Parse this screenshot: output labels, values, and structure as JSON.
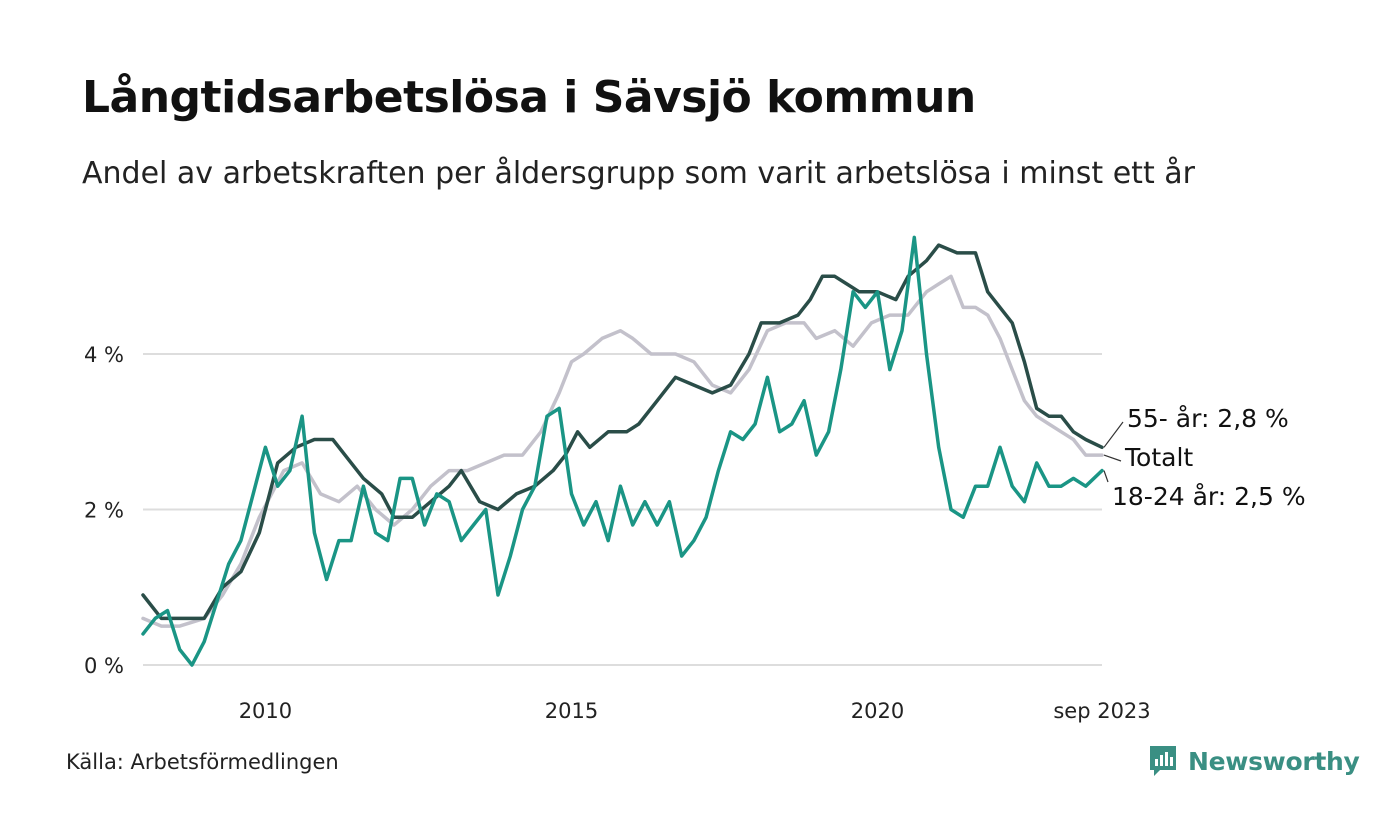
{
  "header": {
    "title": "Långtidsarbetslösa i Sävsjö kommun",
    "subtitle": "Andel av arbetskraften per åldersgrupp som varit arbetslösa i minst ett år"
  },
  "footer": {
    "source": "Källa: Arbetsförmedlingen",
    "brand": "Newsworthy"
  },
  "colors": {
    "age55": "#2a4d48",
    "total": "#c3c1cb",
    "age1824": "#1a9585",
    "grid": "#dddddd",
    "brand": "#3a8f83"
  },
  "chart_data": {
    "type": "line",
    "title": "Långtidsarbetslösa i Sävsjö kommun",
    "xlabel": "",
    "ylabel": "",
    "x_start": 2008.0,
    "x_end": 2023.667,
    "ylim": [
      0,
      5.6
    ],
    "yticks": [
      {
        "value": 0,
        "label": "0 %"
      },
      {
        "value": 2,
        "label": "2 %"
      },
      {
        "value": 4,
        "label": "4 %"
      }
    ],
    "xticks": [
      {
        "value": 2010,
        "label": "2010"
      },
      {
        "value": 2015,
        "label": "2015"
      },
      {
        "value": 2020,
        "label": "2020"
      },
      {
        "value": 2023.667,
        "label": "sep 2023"
      }
    ],
    "grid": true,
    "series": [
      {
        "name": "Totalt",
        "key": "total",
        "end_label": "Totalt",
        "points": [
          [
            2008.0,
            0.6
          ],
          [
            2008.3,
            0.5
          ],
          [
            2008.6,
            0.5
          ],
          [
            2009.0,
            0.6
          ],
          [
            2009.3,
            0.9
          ],
          [
            2009.6,
            1.3
          ],
          [
            2009.9,
            1.9
          ],
          [
            2010.3,
            2.5
          ],
          [
            2010.6,
            2.6
          ],
          [
            2010.9,
            2.2
          ],
          [
            2011.2,
            2.1
          ],
          [
            2011.5,
            2.3
          ],
          [
            2011.8,
            2.0
          ],
          [
            2012.1,
            1.8
          ],
          [
            2012.4,
            2.0
          ],
          [
            2012.7,
            2.3
          ],
          [
            2013.0,
            2.5
          ],
          [
            2013.3,
            2.5
          ],
          [
            2013.6,
            2.6
          ],
          [
            2013.9,
            2.7
          ],
          [
            2014.2,
            2.7
          ],
          [
            2014.5,
            3.0
          ],
          [
            2014.8,
            3.5
          ],
          [
            2015.0,
            3.9
          ],
          [
            2015.2,
            4.0
          ],
          [
            2015.5,
            4.2
          ],
          [
            2015.8,
            4.3
          ],
          [
            2016.0,
            4.2
          ],
          [
            2016.3,
            4.0
          ],
          [
            2016.7,
            4.0
          ],
          [
            2017.0,
            3.9
          ],
          [
            2017.3,
            3.6
          ],
          [
            2017.6,
            3.5
          ],
          [
            2017.9,
            3.8
          ],
          [
            2018.2,
            4.3
          ],
          [
            2018.5,
            4.4
          ],
          [
            2018.8,
            4.4
          ],
          [
            2019.0,
            4.2
          ],
          [
            2019.3,
            4.3
          ],
          [
            2019.6,
            4.1
          ],
          [
            2019.9,
            4.4
          ],
          [
            2020.2,
            4.5
          ],
          [
            2020.5,
            4.5
          ],
          [
            2020.8,
            4.8
          ],
          [
            2021.0,
            4.9
          ],
          [
            2021.2,
            5.0
          ],
          [
            2021.4,
            4.6
          ],
          [
            2021.6,
            4.6
          ],
          [
            2021.8,
            4.5
          ],
          [
            2022.0,
            4.2
          ],
          [
            2022.2,
            3.8
          ],
          [
            2022.4,
            3.4
          ],
          [
            2022.6,
            3.2
          ],
          [
            2022.8,
            3.1
          ],
          [
            2023.0,
            3.0
          ],
          [
            2023.2,
            2.9
          ],
          [
            2023.4,
            2.7
          ],
          [
            2023.667,
            2.7
          ]
        ]
      },
      {
        "name": "55- år",
        "key": "age55",
        "end_label": "55- år: 2,8 %",
        "points": [
          [
            2008.0,
            0.9
          ],
          [
            2008.3,
            0.6
          ],
          [
            2008.6,
            0.6
          ],
          [
            2009.0,
            0.6
          ],
          [
            2009.3,
            1.0
          ],
          [
            2009.6,
            1.2
          ],
          [
            2009.9,
            1.7
          ],
          [
            2010.2,
            2.6
          ],
          [
            2010.5,
            2.8
          ],
          [
            2010.8,
            2.9
          ],
          [
            2011.1,
            2.9
          ],
          [
            2011.3,
            2.7
          ],
          [
            2011.6,
            2.4
          ],
          [
            2011.9,
            2.2
          ],
          [
            2012.1,
            1.9
          ],
          [
            2012.4,
            1.9
          ],
          [
            2012.7,
            2.1
          ],
          [
            2013.0,
            2.3
          ],
          [
            2013.2,
            2.5
          ],
          [
            2013.5,
            2.1
          ],
          [
            2013.8,
            2.0
          ],
          [
            2014.1,
            2.2
          ],
          [
            2014.4,
            2.3
          ],
          [
            2014.7,
            2.5
          ],
          [
            2014.9,
            2.7
          ],
          [
            2015.1,
            3.0
          ],
          [
            2015.3,
            2.8
          ],
          [
            2015.6,
            3.0
          ],
          [
            2015.9,
            3.0
          ],
          [
            2016.1,
            3.1
          ],
          [
            2016.4,
            3.4
          ],
          [
            2016.7,
            3.7
          ],
          [
            2017.0,
            3.6
          ],
          [
            2017.3,
            3.5
          ],
          [
            2017.6,
            3.6
          ],
          [
            2017.9,
            4.0
          ],
          [
            2018.1,
            4.4
          ],
          [
            2018.4,
            4.4
          ],
          [
            2018.7,
            4.5
          ],
          [
            2018.9,
            4.7
          ],
          [
            2019.1,
            5.0
          ],
          [
            2019.3,
            5.0
          ],
          [
            2019.5,
            4.9
          ],
          [
            2019.7,
            4.8
          ],
          [
            2020.0,
            4.8
          ],
          [
            2020.3,
            4.7
          ],
          [
            2020.5,
            5.0
          ],
          [
            2020.8,
            5.2
          ],
          [
            2021.0,
            5.4
          ],
          [
            2021.3,
            5.3
          ],
          [
            2021.6,
            5.3
          ],
          [
            2021.8,
            4.8
          ],
          [
            2022.0,
            4.6
          ],
          [
            2022.2,
            4.4
          ],
          [
            2022.4,
            3.9
          ],
          [
            2022.6,
            3.3
          ],
          [
            2022.8,
            3.2
          ],
          [
            2023.0,
            3.2
          ],
          [
            2023.2,
            3.0
          ],
          [
            2023.4,
            2.9
          ],
          [
            2023.667,
            2.8
          ]
        ]
      },
      {
        "name": "18-24 år",
        "key": "age1824",
        "end_label": "18-24 år: 2,5 %",
        "points": [
          [
            2008.0,
            0.4
          ],
          [
            2008.2,
            0.6
          ],
          [
            2008.4,
            0.7
          ],
          [
            2008.6,
            0.2
          ],
          [
            2008.8,
            0.0
          ],
          [
            2009.0,
            0.3
          ],
          [
            2009.2,
            0.8
          ],
          [
            2009.4,
            1.3
          ],
          [
            2009.6,
            1.6
          ],
          [
            2009.8,
            2.2
          ],
          [
            2010.0,
            2.8
          ],
          [
            2010.2,
            2.3
          ],
          [
            2010.4,
            2.5
          ],
          [
            2010.6,
            3.2
          ],
          [
            2010.8,
            1.7
          ],
          [
            2011.0,
            1.1
          ],
          [
            2011.2,
            1.6
          ],
          [
            2011.4,
            1.6
          ],
          [
            2011.6,
            2.3
          ],
          [
            2011.8,
            1.7
          ],
          [
            2012.0,
            1.6
          ],
          [
            2012.2,
            2.4
          ],
          [
            2012.4,
            2.4
          ],
          [
            2012.6,
            1.8
          ],
          [
            2012.8,
            2.2
          ],
          [
            2013.0,
            2.1
          ],
          [
            2013.2,
            1.6
          ],
          [
            2013.4,
            1.8
          ],
          [
            2013.6,
            2.0
          ],
          [
            2013.8,
            0.9
          ],
          [
            2014.0,
            1.4
          ],
          [
            2014.2,
            2.0
          ],
          [
            2014.4,
            2.3
          ],
          [
            2014.6,
            3.2
          ],
          [
            2014.8,
            3.3
          ],
          [
            2015.0,
            2.2
          ],
          [
            2015.2,
            1.8
          ],
          [
            2015.4,
            2.1
          ],
          [
            2015.6,
            1.6
          ],
          [
            2015.8,
            2.3
          ],
          [
            2016.0,
            1.8
          ],
          [
            2016.2,
            2.1
          ],
          [
            2016.4,
            1.8
          ],
          [
            2016.6,
            2.1
          ],
          [
            2016.8,
            1.4
          ],
          [
            2017.0,
            1.6
          ],
          [
            2017.2,
            1.9
          ],
          [
            2017.4,
            2.5
          ],
          [
            2017.6,
            3.0
          ],
          [
            2017.8,
            2.9
          ],
          [
            2018.0,
            3.1
          ],
          [
            2018.2,
            3.7
          ],
          [
            2018.4,
            3.0
          ],
          [
            2018.6,
            3.1
          ],
          [
            2018.8,
            3.4
          ],
          [
            2019.0,
            2.7
          ],
          [
            2019.2,
            3.0
          ],
          [
            2019.4,
            3.8
          ],
          [
            2019.6,
            4.8
          ],
          [
            2019.8,
            4.6
          ],
          [
            2020.0,
            4.8
          ],
          [
            2020.2,
            3.8
          ],
          [
            2020.4,
            4.3
          ],
          [
            2020.6,
            5.5
          ],
          [
            2020.8,
            4.0
          ],
          [
            2021.0,
            2.8
          ],
          [
            2021.2,
            2.0
          ],
          [
            2021.4,
            1.9
          ],
          [
            2021.6,
            2.3
          ],
          [
            2021.8,
            2.3
          ],
          [
            2022.0,
            2.8
          ],
          [
            2022.2,
            2.3
          ],
          [
            2022.4,
            2.1
          ],
          [
            2022.6,
            2.6
          ],
          [
            2022.8,
            2.3
          ],
          [
            2023.0,
            2.3
          ],
          [
            2023.2,
            2.4
          ],
          [
            2023.4,
            2.3
          ],
          [
            2023.667,
            2.5
          ]
        ]
      }
    ]
  }
}
